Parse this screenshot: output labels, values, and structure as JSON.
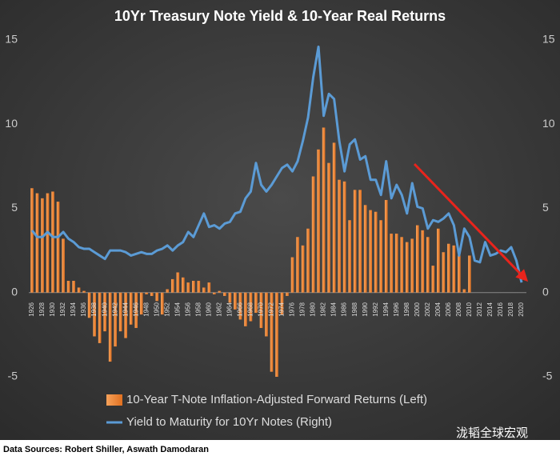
{
  "chart_data": {
    "type": "bar_line",
    "title": "10Yr Treasury Note Yield & 10-Year Real Returns",
    "categories": [
      "1926",
      null,
      "1928",
      null,
      "1930",
      null,
      "1932",
      null,
      "1934",
      null,
      "1936",
      null,
      "1938",
      null,
      "1940",
      null,
      "1942",
      null,
      "1944",
      null,
      "1946",
      null,
      "1948",
      null,
      "1950",
      null,
      "1952",
      null,
      "1954",
      null,
      "1956",
      null,
      "1958",
      null,
      "1960",
      null,
      "1962",
      null,
      "1964",
      null,
      "1966",
      null,
      "1968",
      null,
      "1970",
      null,
      "1972",
      null,
      "1974",
      null,
      "1976",
      null,
      "1978",
      null,
      "1980",
      null,
      "1982",
      null,
      "1984",
      null,
      "1986",
      null,
      "1988",
      null,
      "1990",
      null,
      "1992",
      null,
      "1994",
      null,
      "1996",
      null,
      "1998",
      null,
      "2000",
      null,
      "2002",
      null,
      "2004",
      null,
      "2006",
      null,
      "2008",
      null,
      "2010",
      null,
      "2012",
      null,
      "2014",
      null,
      "2016",
      null,
      "2018",
      null,
      "2020"
    ],
    "series": [
      {
        "name": "10-Year T-Note Inflation-Adjusted Forward Returns (Left)",
        "color": "#f0883a",
        "axis": "y",
        "values": [
          6.2,
          5.9,
          5.6,
          5.9,
          6.0,
          5.4,
          3.2,
          0.7,
          0.7,
          0.3,
          0.1,
          -1.5,
          -2.6,
          -3.0,
          -2.3,
          -4.1,
          -3.2,
          -2.3,
          -2.7,
          -1.9,
          -2.1,
          -1.3,
          -0.1,
          -0.2,
          -0.5,
          -1.3,
          0.2,
          0.8,
          1.2,
          0.9,
          0.6,
          0.7,
          0.7,
          0.3,
          0.6,
          -0.1,
          0.1,
          -0.2,
          -0.6,
          -1.0,
          -1.6,
          -2.0,
          -1.7,
          -1.2,
          -2.1,
          -2.6,
          -4.7,
          -5.0,
          -1.3,
          -0.2,
          2.1,
          3.3,
          2.8,
          3.8,
          6.9,
          8.5,
          9.8,
          7.7,
          8.9,
          6.7,
          6.6,
          4.3,
          6.1,
          6.1,
          5.2,
          4.9,
          4.8,
          4.3,
          5.5,
          3.5,
          3.5,
          3.3,
          3.0,
          3.2,
          4.0,
          3.7,
          3.3,
          1.6,
          3.8,
          2.4,
          2.9,
          2.8,
          2.2,
          0.2,
          2.2,
          null,
          null,
          null,
          null,
          null,
          null,
          null,
          null,
          null,
          null
        ]
      },
      {
        "name": "Yield to Maturity for 10Yr Notes (Right)",
        "color": "#5b9bd5",
        "axis": "y2",
        "values": [
          3.7,
          3.3,
          3.3,
          3.6,
          3.3,
          3.3,
          3.6,
          3.2,
          3.0,
          2.7,
          2.6,
          2.6,
          2.4,
          2.2,
          2.0,
          2.5,
          2.5,
          2.5,
          2.4,
          2.2,
          2.3,
          2.4,
          2.3,
          2.3,
          2.5,
          2.6,
          2.8,
          2.5,
          2.8,
          3.0,
          3.6,
          3.3,
          4.0,
          4.7,
          3.9,
          4.0,
          3.8,
          4.1,
          4.2,
          4.7,
          4.8,
          5.6,
          6.0,
          7.7,
          6.4,
          6.0,
          6.4,
          6.9,
          7.4,
          7.6,
          7.2,
          7.8,
          9.0,
          10.4,
          12.8,
          14.6,
          10.5,
          11.8,
          11.5,
          9.0,
          7.2,
          8.8,
          9.1,
          7.9,
          8.1,
          6.7,
          6.7,
          5.8,
          7.8,
          5.6,
          6.4,
          5.8,
          4.7,
          6.5,
          5.1,
          5.0,
          3.8,
          4.3,
          4.2,
          4.4,
          4.7,
          4.0,
          2.2,
          3.8,
          3.3,
          1.9,
          1.8,
          3.0,
          2.2,
          2.3,
          2.5,
          2.4,
          2.7,
          1.9,
          0.6
        ]
      }
    ],
    "ylim": [
      -5,
      15
    ],
    "yticks": [
      -5,
      0,
      5,
      10,
      15
    ],
    "y2lim": [
      -5,
      15
    ],
    "y2ticks": [
      -5,
      0,
      5,
      10,
      15
    ],
    "source": "Data Sources: Robert Shiller, Aswath Damodaran",
    "watermark": "泷韬全球宏观"
  }
}
